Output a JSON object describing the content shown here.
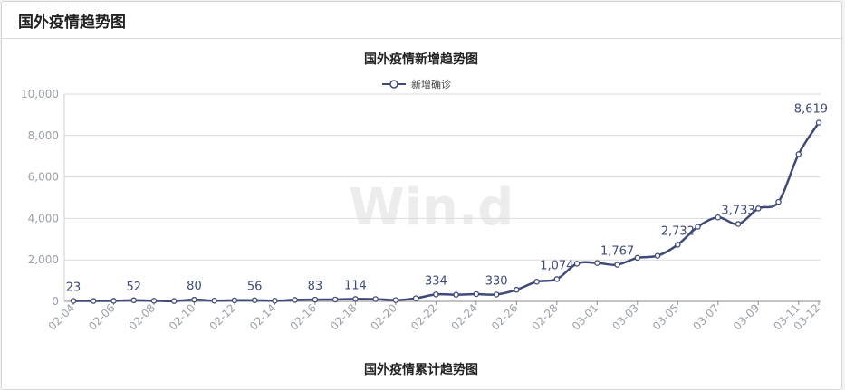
{
  "panel": {
    "title": "国外疫情趋势图"
  },
  "watermark": "Win.d",
  "chart_data": [
    {
      "type": "line",
      "title": "国外疫情新增趋势图",
      "legend": {
        "entries": [
          "新增确诊"
        ],
        "placement": "top-center"
      },
      "xlabel": "",
      "ylabel": "",
      "ylim": [
        0,
        10000
      ],
      "yticks": [
        0,
        2000,
        4000,
        6000,
        8000,
        10000
      ],
      "ytick_labels": [
        "0",
        "2,000",
        "4,000",
        "6,000",
        "8,000",
        "10,000"
      ],
      "xtick_labels": [
        "02-04",
        "02-06",
        "02-08",
        "02-10",
        "02-12",
        "02-14",
        "02-16",
        "02-18",
        "02-20",
        "02-22",
        "02-24",
        "02-26",
        "02-28",
        "03-01",
        "03-03",
        "03-05",
        "03-07",
        "03-09",
        "03-11",
        "03-12"
      ],
      "grid": "horizontal",
      "line_color": "#3f4a7a",
      "series": [
        {
          "name": "新增确诊",
          "x": [
            "02-04",
            "02-05",
            "02-06",
            "02-07",
            "02-08",
            "02-09",
            "02-10",
            "02-11",
            "02-12",
            "02-13",
            "02-14",
            "02-15",
            "02-16",
            "02-17",
            "02-18",
            "02-19",
            "02-20",
            "02-21",
            "02-22",
            "02-23",
            "02-24",
            "02-25",
            "02-26",
            "02-27",
            "02-28",
            "02-29",
            "03-01",
            "03-02",
            "03-03",
            "03-04",
            "03-05",
            "03-06",
            "03-07",
            "03-08",
            "03-09",
            "03-10",
            "03-11",
            "03-12"
          ],
          "values": [
            23,
            20,
            25,
            52,
            30,
            15,
            80,
            35,
            50,
            56,
            30,
            70,
            83,
            90,
            114,
            110,
            60,
            150,
            334,
            320,
            350,
            330,
            560,
            950,
            1074,
            1820,
            1850,
            1767,
            2100,
            2200,
            2732,
            3600,
            4050,
            3733,
            4480,
            4800,
            7100,
            8619
          ]
        }
      ],
      "data_labels": [
        {
          "x": "02-04",
          "text": "23"
        },
        {
          "x": "02-07",
          "text": "52"
        },
        {
          "x": "02-10",
          "text": "80"
        },
        {
          "x": "02-13",
          "text": "56"
        },
        {
          "x": "02-16",
          "text": "83"
        },
        {
          "x": "02-18",
          "text": "114"
        },
        {
          "x": "02-22",
          "text": "334"
        },
        {
          "x": "02-25",
          "text": "330"
        },
        {
          "x": "02-28",
          "text": "1,074"
        },
        {
          "x": "03-02",
          "text": "1,767"
        },
        {
          "x": "03-05",
          "text": "2,732"
        },
        {
          "x": "03-08",
          "text": "3,733"
        },
        {
          "x": "03-12",
          "text": "8,619"
        }
      ]
    },
    {
      "type": "line",
      "title": "国外疫情累计趋势图"
    }
  ]
}
